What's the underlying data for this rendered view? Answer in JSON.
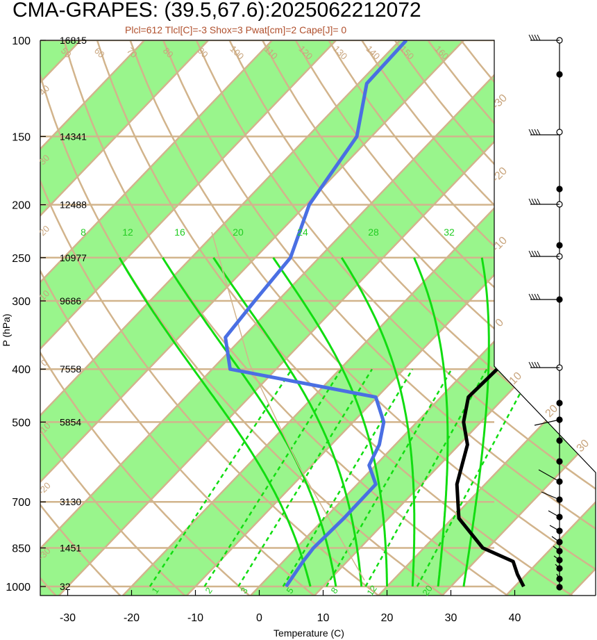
{
  "chart_data": {
    "type": "line",
    "title": "CMA-GRAPES: (39.5,67.6):2025062212072",
    "subtitle": "Plcl=612 Tlcl[C]=-3 Shox=3 Pwat[cm]=2 Cape[J]= 0",
    "xlabel": "Temperature (C)",
    "ylabel": "P (hPa)",
    "xlim": [
      -34,
      46
    ],
    "ylim": [
      1000,
      100
    ],
    "y_scale": "log",
    "x_ticks": [
      -30,
      -20,
      -10,
      0,
      10,
      20,
      30,
      40
    ],
    "pressure_levels": [
      100,
      150,
      200,
      250,
      300,
      400,
      500,
      700,
      850,
      1000
    ],
    "heights": [
      "16815",
      "14341",
      "12488",
      "10977",
      "9686",
      "7558",
      "5854",
      "3130",
      "1451",
      "32"
    ],
    "isotherm_labels_top": [
      "50",
      "60",
      "70",
      "80",
      "90",
      "100",
      "110",
      "120",
      "130",
      "140",
      "150",
      "160"
    ],
    "isotherm_labels_right": [
      "-30",
      "-20",
      "-10",
      "0",
      "10",
      "20",
      "30"
    ],
    "isotherm_labels_left": [
      "40",
      "30",
      "20",
      "10",
      "0",
      "-10",
      "-20",
      "-30"
    ],
    "moist_adiabat_labels": [
      "8",
      "12",
      "16",
      "20",
      "24",
      "28",
      "32"
    ],
    "mixing_ratio_labels": [
      "1",
      "2",
      "3",
      "5",
      "8",
      "12",
      "20"
    ],
    "series": [
      {
        "name": "Temperature",
        "color": "#000000",
        "points": [
          [
            41.4,
            1000
          ],
          [
            38.6,
            950
          ],
          [
            36.0,
            900
          ],
          [
            29.2,
            850
          ],
          [
            21.0,
            750
          ],
          [
            15.6,
            650
          ],
          [
            11.3,
            550
          ],
          [
            7.3,
            500
          ],
          [
            4.3,
            450
          ],
          [
            4.6,
            400
          ],
          [
            6.3,
            350
          ],
          [
            5.8,
            300
          ],
          [
            4.3,
            250
          ],
          [
            -0.4,
            200
          ],
          [
            -4.1,
            150
          ],
          [
            -3.8,
            120
          ],
          [
            -1.7,
            100
          ]
        ]
      },
      {
        "name": "Dewpoint",
        "color": "#4a6fe3",
        "points": [
          [
            4.2,
            1000
          ],
          [
            3.1,
            900
          ],
          [
            2.7,
            850
          ],
          [
            3.0,
            750
          ],
          [
            2.9,
            650
          ],
          [
            -1.0,
            600
          ],
          [
            -2.5,
            550
          ],
          [
            -5.2,
            500
          ],
          [
            -10.2,
            450
          ],
          [
            -37.2,
            400
          ],
          [
            -42.7,
            350
          ],
          [
            -43.6,
            300
          ],
          [
            -44.5,
            250
          ],
          [
            -49.5,
            200
          ],
          [
            -52.3,
            150
          ],
          [
            -58.7,
            120
          ],
          [
            -59.0,
            100
          ]
        ]
      }
    ],
    "isotherm_band_fill": "#99f58c",
    "grid_color": "#d2b48c",
    "adiabat_color": "#11dd11"
  }
}
